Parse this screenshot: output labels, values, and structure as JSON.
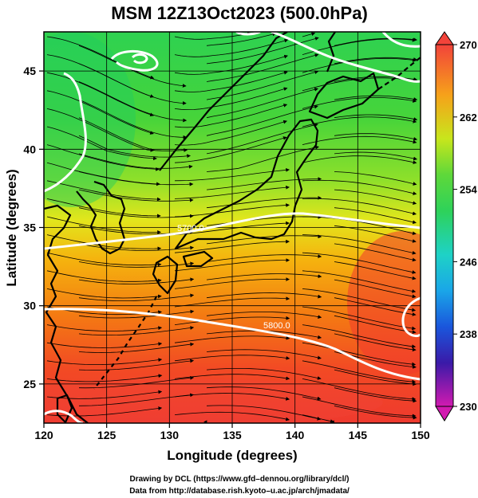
{
  "title": "MSM 12Z13Oct2023 (500.0hPa)",
  "x_axis": {
    "label": "Longitude (degrees)",
    "ticks": [
      "120",
      "125",
      "130",
      "135",
      "140",
      "145",
      "150"
    ],
    "range": [
      120,
      150
    ]
  },
  "y_axis": {
    "label": "Latitude  (degrees)",
    "ticks": [
      "25",
      "30",
      "35",
      "40",
      "45"
    ],
    "range": [
      22.5,
      47.5
    ]
  },
  "colorbar": {
    "ticks": [
      "270",
      "262",
      "254",
      "246",
      "238",
      "230"
    ],
    "range": [
      230,
      270
    ]
  },
  "contour_labels": [
    "5700.0",
    "5800.0"
  ],
  "credits": [
    "Drawing by DCL (https://www.gfd–dennou.org/library/dcl/)",
    "Data from http://database.rish.kyoto–u.ac.jp/arch/jmadata/"
  ],
  "colors": {
    "cold_green": "#2ecc50",
    "mid_yellow": "#d8ee1e",
    "warm_orange": "#f4a20c",
    "hot_red": "#f0402a",
    "contour": "#ffffff",
    "coast": "#000000",
    "streamline": "#000000"
  }
}
